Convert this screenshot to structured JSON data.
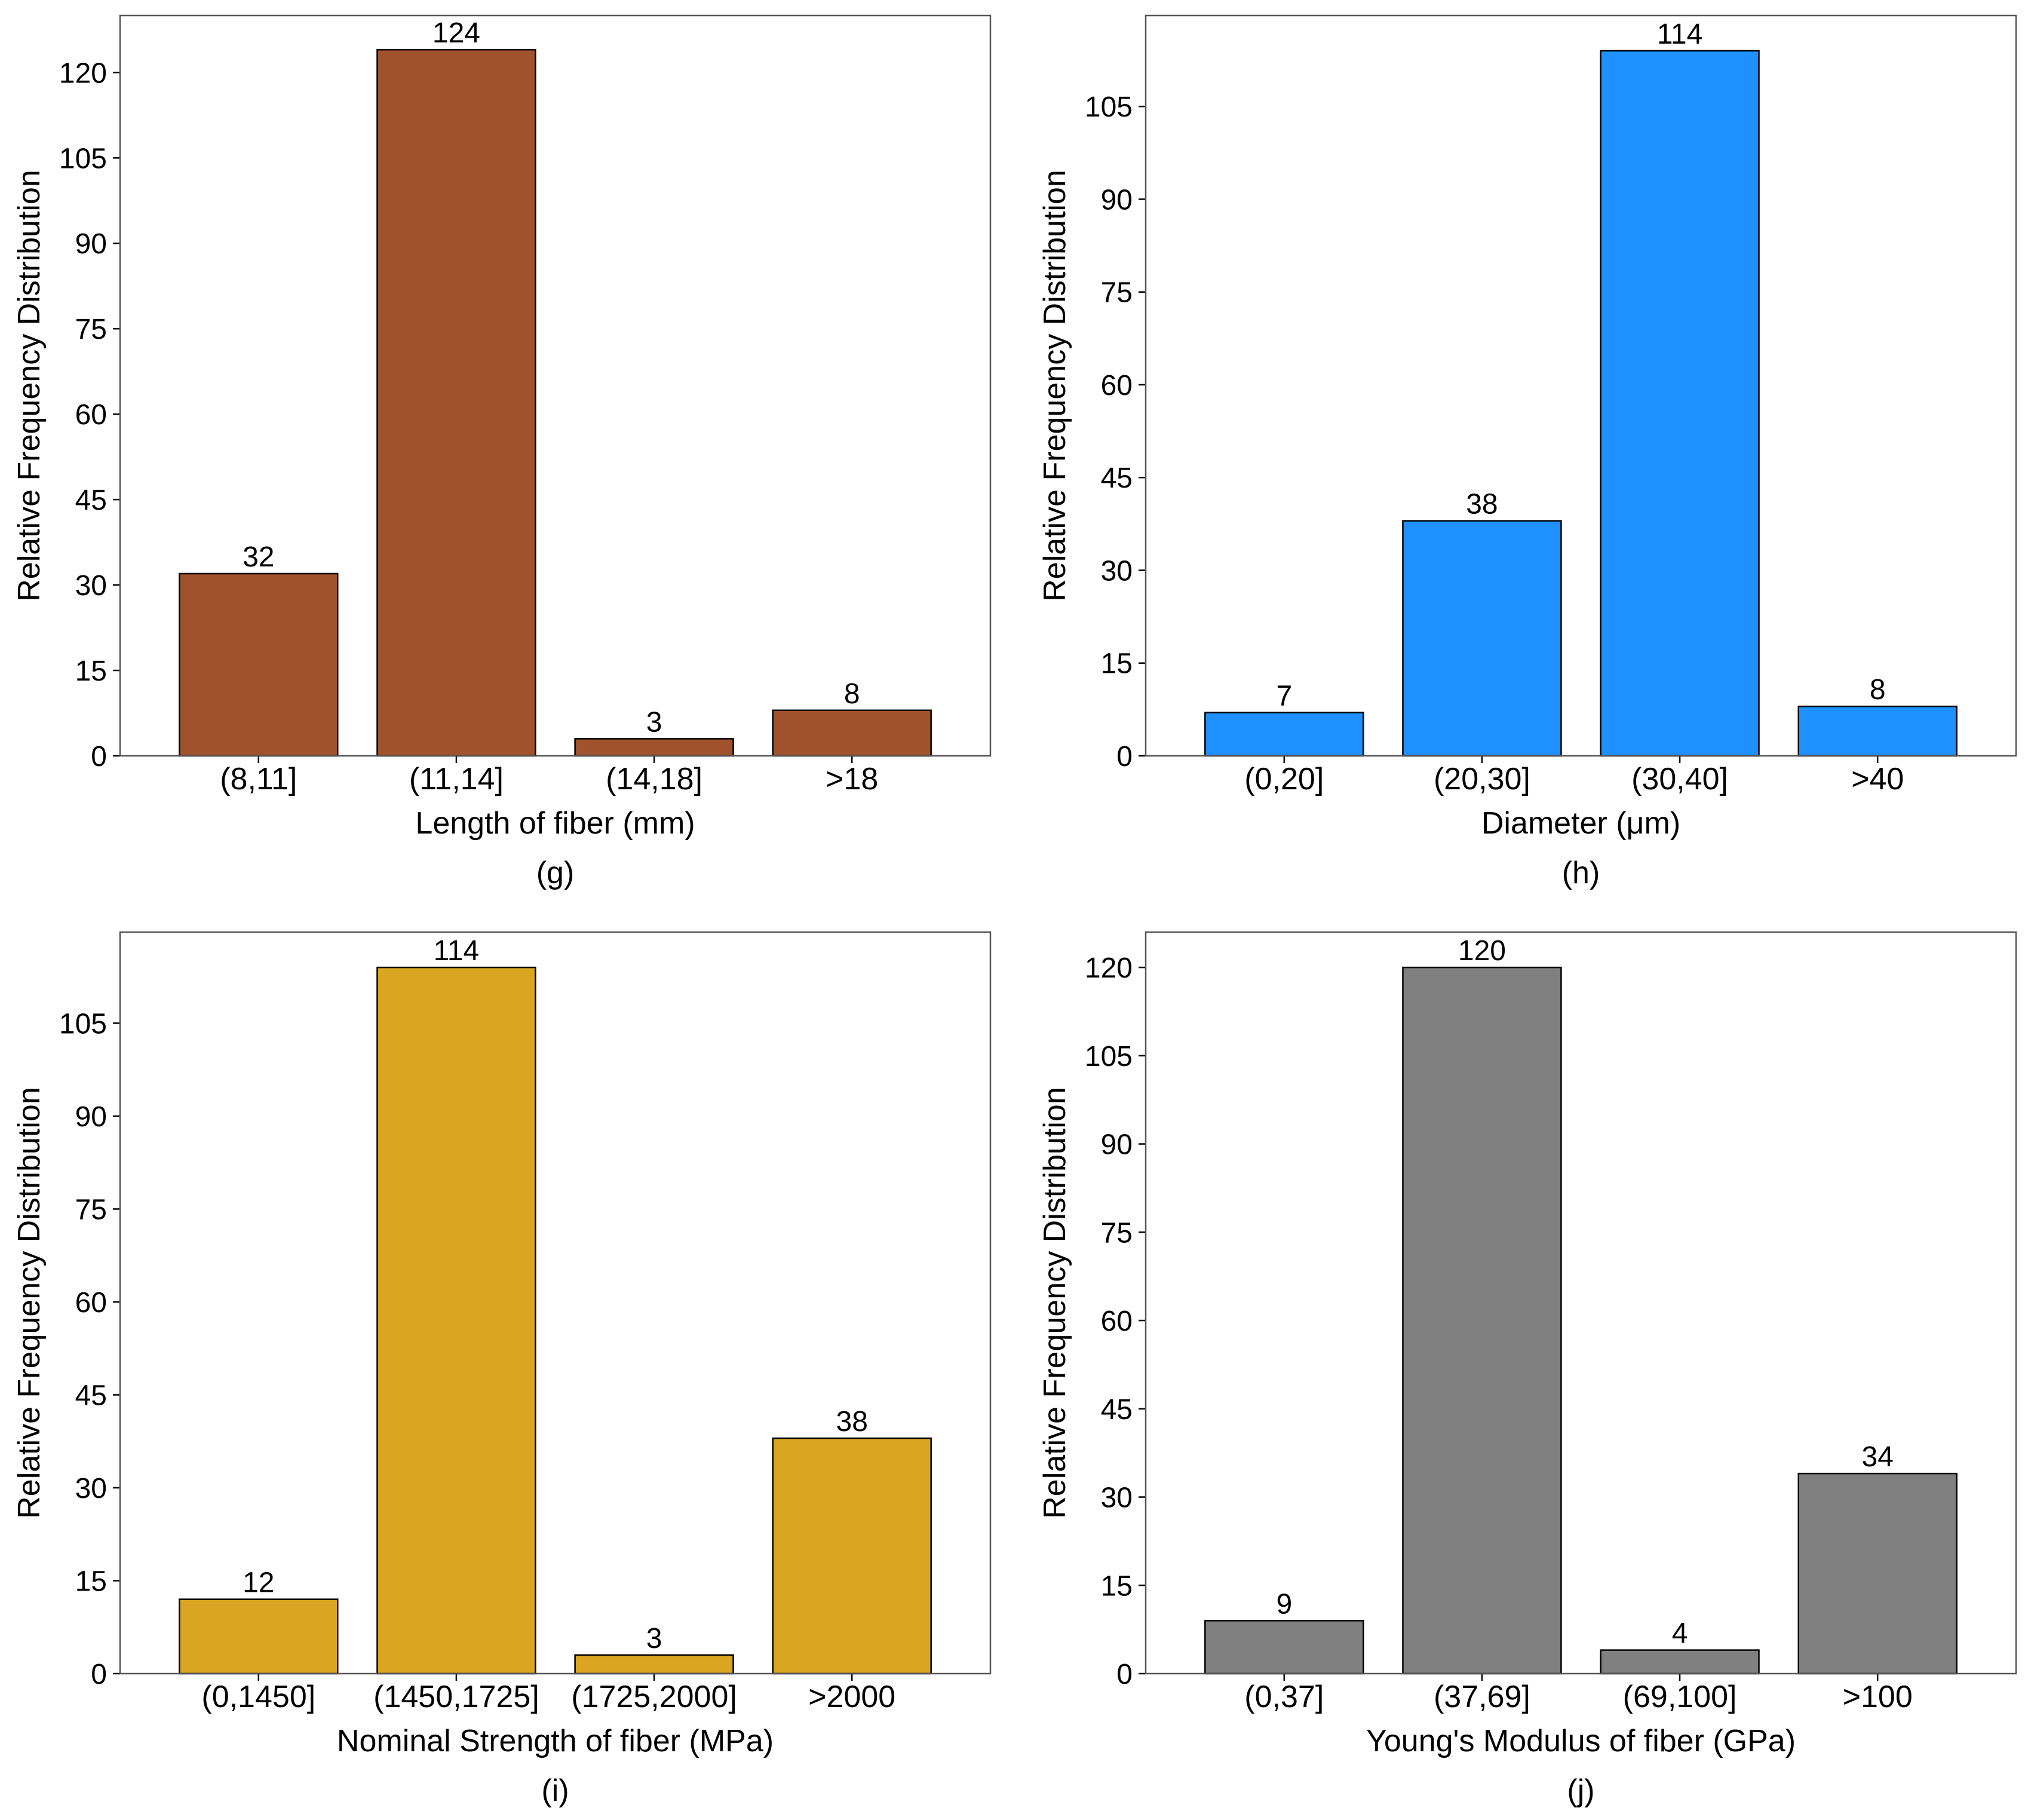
{
  "chart_data": [
    {
      "type": "bar",
      "categories": [
        "(8,11]",
        "(11,14]",
        "(14,18]",
        ">18"
      ],
      "values": [
        32,
        124,
        3,
        8
      ],
      "xlabel": "Length of fiber (mm)",
      "ylabel": "Relative Frequency Distribution",
      "panel_label": "(g)",
      "ylim": [
        0,
        130
      ],
      "yticks": [
        0,
        15,
        30,
        45,
        60,
        75,
        90,
        105,
        120
      ],
      "color": "#a0522d",
      "grid": false
    },
    {
      "type": "bar",
      "categories": [
        "(0,20]",
        "(20,30]",
        "(30,40]",
        ">40"
      ],
      "values": [
        7,
        38,
        114,
        8
      ],
      "xlabel": "Diameter (μm)",
      "ylabel": "Relative Frequency Distribution",
      "panel_label": "(h)",
      "ylim": [
        0,
        119.7
      ],
      "yticks": [
        0,
        15,
        30,
        45,
        60,
        75,
        90,
        105
      ],
      "color": "#1e90ff",
      "grid": false
    },
    {
      "type": "bar",
      "categories": [
        "(0,1450]",
        "(1450,1725]",
        "(1725,2000]",
        ">2000"
      ],
      "values": [
        12,
        114,
        3,
        38
      ],
      "xlabel": "Nominal Strength of fiber (MPa)",
      "ylabel": "Relative Frequency Distribution",
      "panel_label": "(i)",
      "ylim": [
        0,
        119.7
      ],
      "yticks": [
        0,
        15,
        30,
        45,
        60,
        75,
        90,
        105
      ],
      "color": "#daa520",
      "grid": false
    },
    {
      "type": "bar",
      "categories": [
        "(0,37]",
        "(37,69]",
        "(69,100]",
        ">100"
      ],
      "values": [
        9,
        120,
        4,
        34
      ],
      "xlabel": "Young's Modulus of fiber (GPa)",
      "ylabel": "Relative Frequency Distribution",
      "panel_label": "(j)",
      "ylim": [
        0,
        126
      ],
      "yticks": [
        0,
        15,
        30,
        45,
        60,
        75,
        90,
        105,
        120
      ],
      "color": "#808080",
      "grid": false
    }
  ]
}
